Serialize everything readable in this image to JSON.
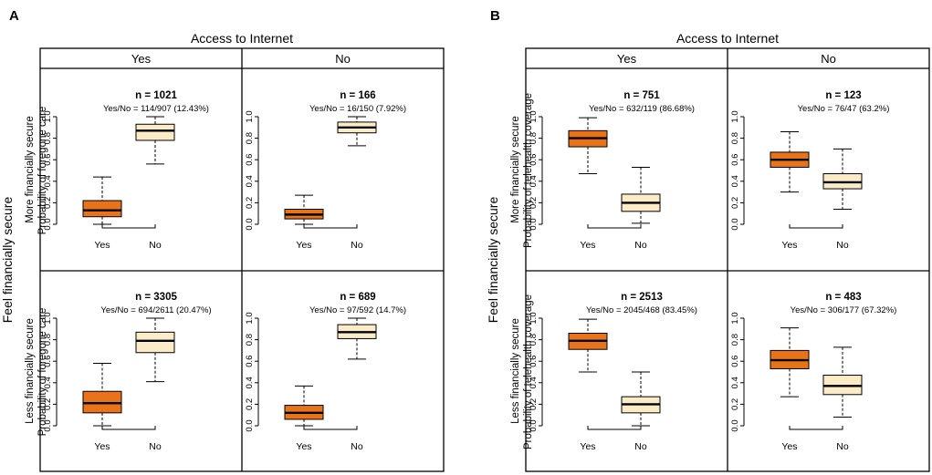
{
  "colors": {
    "yes_box": "#e8731a",
    "no_box": "#fbecc7",
    "frame": "#000000",
    "background": "#ffffff"
  },
  "y_ticks": [
    "0.0",
    "0.2",
    "0.4",
    "0.6",
    "0.8",
    "1.0"
  ],
  "chart_data": [
    {
      "panel_letter": "A",
      "type": "boxplot",
      "column_header": "Access to Internet",
      "row_header": "Feel financially secure",
      "ylabel": "Probability of foregone care",
      "ylim": [
        0,
        1
      ],
      "columns": [
        "Yes",
        "No"
      ],
      "rows": [
        "More financially secure",
        "Less financially secure"
      ],
      "cells": [
        {
          "row": 0,
          "col": 0,
          "n_label": "n = 1021",
          "yesno_label": "Yes/No = 114/907 (12.43%)",
          "boxes": [
            {
              "category": "Yes",
              "min": 0.0,
              "q1": 0.07,
              "median": 0.13,
              "q3": 0.22,
              "max": 0.44
            },
            {
              "category": "No",
              "min": 0.56,
              "q1": 0.78,
              "median": 0.87,
              "q3": 0.93,
              "max": 1.0
            }
          ]
        },
        {
          "row": 0,
          "col": 1,
          "n_label": "n = 166",
          "yesno_label": "Yes/No = 16/150 (7.92%)",
          "boxes": [
            {
              "category": "Yes",
              "min": 0.0,
              "q1": 0.05,
              "median": 0.09,
              "q3": 0.14,
              "max": 0.27
            },
            {
              "category": "No",
              "min": 0.73,
              "q1": 0.85,
              "median": 0.9,
              "q3": 0.95,
              "max": 1.0
            }
          ]
        },
        {
          "row": 1,
          "col": 0,
          "n_label": "n = 3305",
          "yesno_label": "Yes/No = 694/2611 (20.47%)",
          "boxes": [
            {
              "category": "Yes",
              "min": 0.0,
              "q1": 0.12,
              "median": 0.21,
              "q3": 0.32,
              "max": 0.58
            },
            {
              "category": "No",
              "min": 0.41,
              "q1": 0.68,
              "median": 0.79,
              "q3": 0.87,
              "max": 1.0
            }
          ]
        },
        {
          "row": 1,
          "col": 1,
          "n_label": "n = 689",
          "yesno_label": "Yes/No = 97/592 (14.7%)",
          "boxes": [
            {
              "category": "Yes",
              "min": 0.0,
              "q1": 0.06,
              "median": 0.12,
              "q3": 0.19,
              "max": 0.37
            },
            {
              "category": "No",
              "min": 0.62,
              "q1": 0.81,
              "median": 0.87,
              "q3": 0.94,
              "max": 1.0
            }
          ]
        }
      ]
    },
    {
      "panel_letter": "B",
      "type": "boxplot",
      "column_header": "Access to Internet",
      "row_header": "Feel financially secure",
      "ylabel": "Probability of telehealth coverage",
      "ylim": [
        0,
        1
      ],
      "columns": [
        "Yes",
        "No"
      ],
      "rows": [
        "More financially secure",
        "Less financially secure"
      ],
      "cells": [
        {
          "row": 0,
          "col": 0,
          "n_label": "n = 751",
          "yesno_label": "Yes/No = 632/119 (86.68%)",
          "boxes": [
            {
              "category": "Yes",
              "min": 0.47,
              "q1": 0.72,
              "median": 0.8,
              "q3": 0.87,
              "max": 0.99
            },
            {
              "category": "No",
              "min": 0.01,
              "q1": 0.12,
              "median": 0.2,
              "q3": 0.28,
              "max": 0.53
            }
          ]
        },
        {
          "row": 0,
          "col": 1,
          "n_label": "n = 123",
          "yesno_label": "Yes/No = 76/47 (63.2%)",
          "boxes": [
            {
              "category": "Yes",
              "min": 0.3,
              "q1": 0.53,
              "median": 0.6,
              "q3": 0.67,
              "max": 0.86
            },
            {
              "category": "No",
              "min": 0.14,
              "q1": 0.33,
              "median": 0.39,
              "q3": 0.47,
              "max": 0.7
            }
          ]
        },
        {
          "row": 1,
          "col": 0,
          "n_label": "n = 2513",
          "yesno_label": "Yes/No = 2045/468 (83.45%)",
          "boxes": [
            {
              "category": "Yes",
              "min": 0.5,
              "q1": 0.71,
              "median": 0.79,
              "q3": 0.86,
              "max": 0.99
            },
            {
              "category": "No",
              "min": 0.0,
              "q1": 0.12,
              "median": 0.2,
              "q3": 0.27,
              "max": 0.5
            }
          ]
        },
        {
          "row": 1,
          "col": 1,
          "n_label": "n = 483",
          "yesno_label": "Yes/No = 306/177 (67.32%)",
          "boxes": [
            {
              "category": "Yes",
              "min": 0.27,
              "q1": 0.53,
              "median": 0.61,
              "q3": 0.7,
              "max": 0.91
            },
            {
              "category": "No",
              "min": 0.08,
              "q1": 0.29,
              "median": 0.37,
              "q3": 0.47,
              "max": 0.73
            }
          ]
        }
      ]
    }
  ]
}
